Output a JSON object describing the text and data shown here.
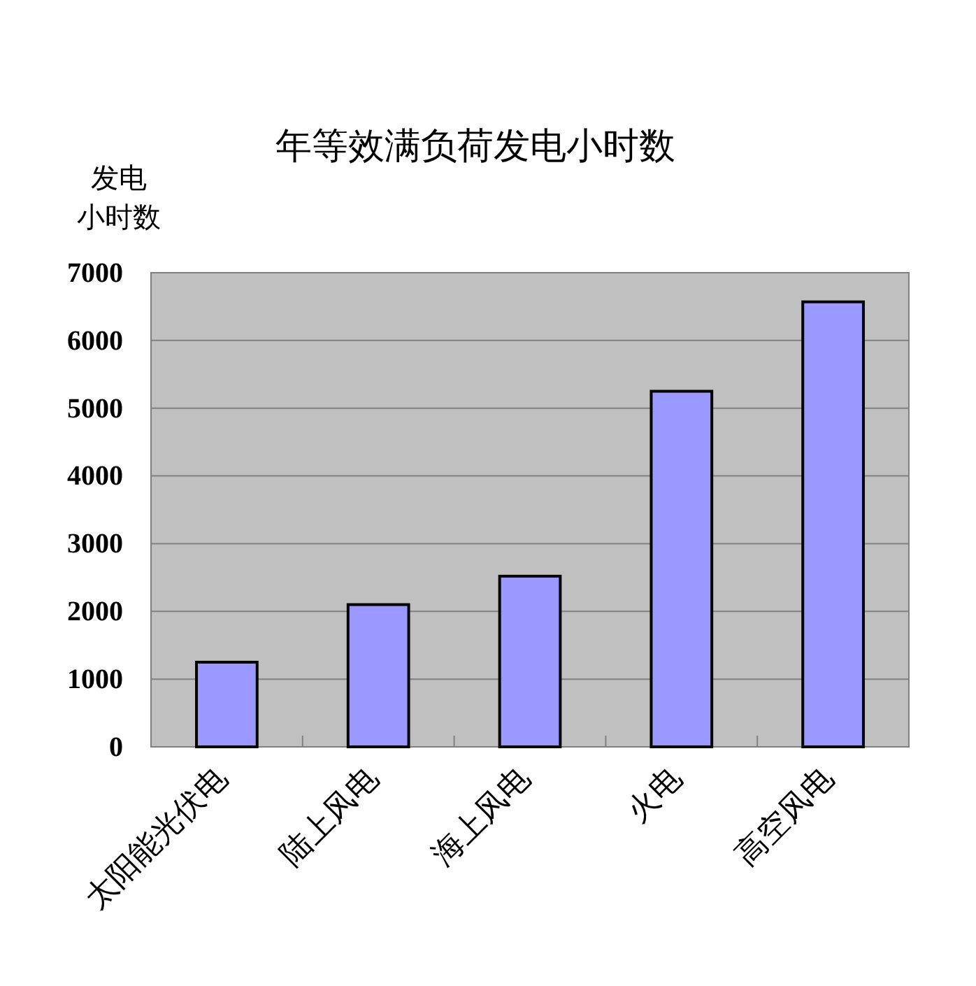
{
  "chart_data": {
    "type": "bar",
    "title": "年等效满负荷发电小时数",
    "ylabel": "发电小时数",
    "categories": [
      "太阳能光伏电",
      "陆上风电",
      "海上风电",
      "火电",
      "高空风电"
    ],
    "values": [
      1250,
      2100,
      2520,
      5250,
      6570
    ],
    "color": "#9999ff",
    "ylim": [
      0,
      7000
    ],
    "yticks": [
      0,
      1000,
      2000,
      3000,
      4000,
      5000,
      6000,
      7000
    ],
    "grid": "y"
  }
}
